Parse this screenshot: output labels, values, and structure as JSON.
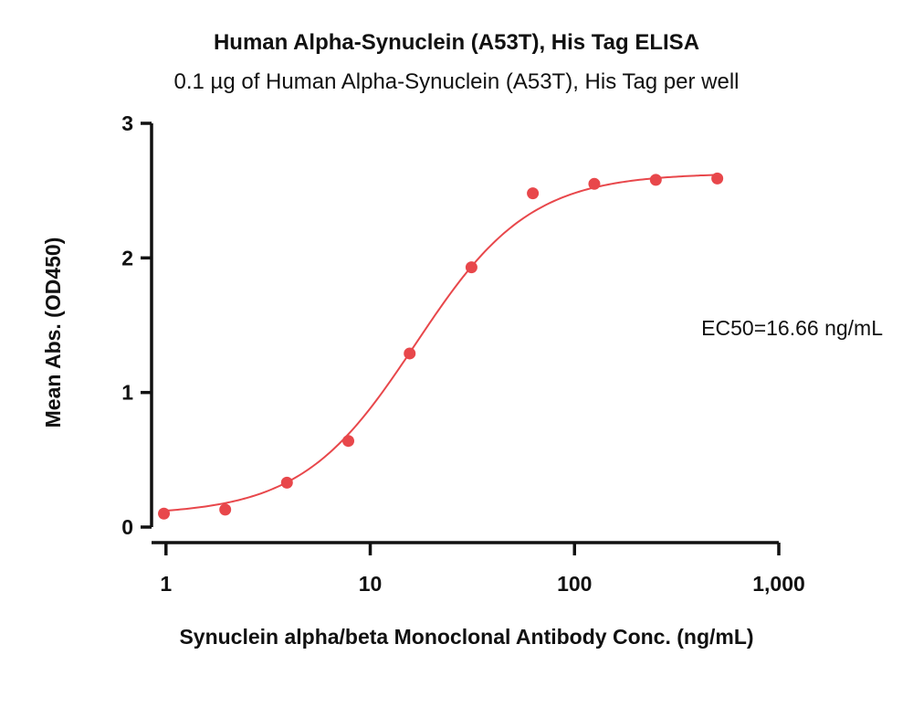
{
  "chart_data": {
    "type": "scatter",
    "title": "Human Alpha-Synuclein (A53T), His Tag ELISA",
    "subtitle": "0.1 µg of Human Alpha-Synuclein (A53T), His Tag per well",
    "xlabel": "Synuclein alpha/beta Monoclonal Antibody Conc. (ng/mL)",
    "ylabel": "Mean Abs. (OD450)",
    "xscale": "log",
    "xlim": [
      0.85,
      1000
    ],
    "ylim": [
      0,
      3
    ],
    "x_ticks": [
      1,
      10,
      100,
      1000
    ],
    "x_tick_labels": [
      "1",
      "10",
      "100",
      "1,000"
    ],
    "y_ticks": [
      0,
      1,
      2,
      3
    ],
    "y_tick_labels": [
      "0",
      "1",
      "2",
      "3"
    ],
    "grid": false,
    "color": "#e8474b",
    "series": [
      {
        "x": [
          0.977,
          1.95,
          3.91,
          7.81,
          15.6,
          31.3,
          62.5,
          125,
          250,
          500
        ],
        "y": [
          0.1,
          0.13,
          0.33,
          0.64,
          1.29,
          1.93,
          2.48,
          2.55,
          2.58,
          2.59
        ]
      }
    ],
    "fit": {
      "model": "4PL",
      "bottom": 0.09,
      "top": 2.63,
      "ec50": 16.66,
      "hill": 1.55
    },
    "annotation": "EC50=16.66 ng/mL"
  }
}
